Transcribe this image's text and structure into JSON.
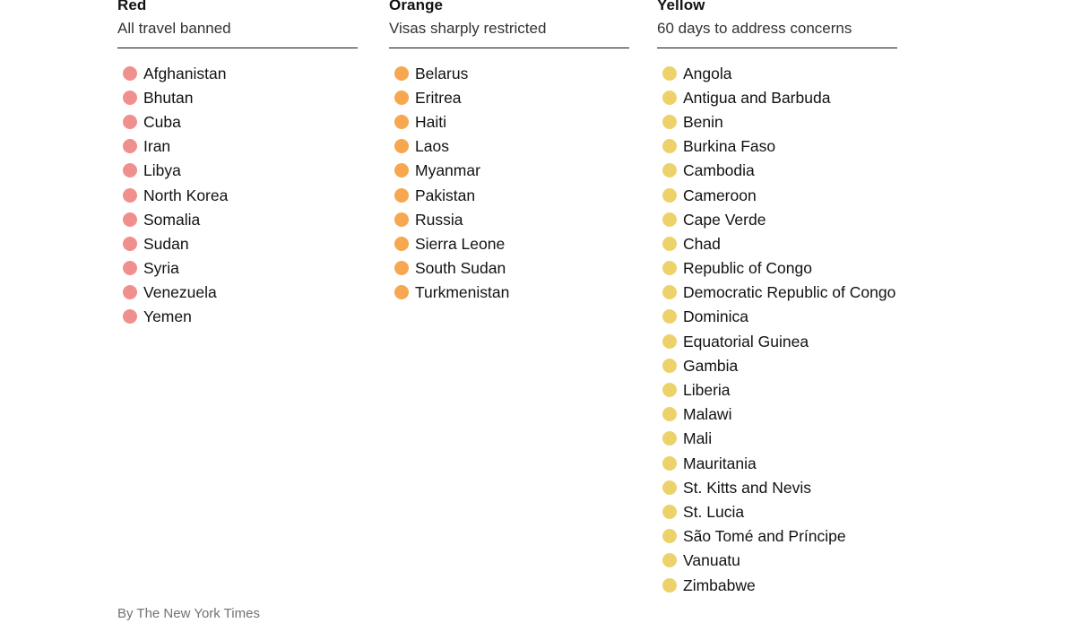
{
  "chart_data": {
    "type": "table",
    "columns": [
      {
        "label": "Red",
        "sublabel": "All travel banned",
        "dot_color": "#F0908E",
        "count": 11,
        "countries": [
          "Afghanistan",
          "Bhutan",
          "Cuba",
          "Iran",
          "Libya",
          "North Korea",
          "Somalia",
          "Sudan",
          "Syria",
          "Venezuela",
          "Yemen"
        ]
      },
      {
        "label": "Orange",
        "sublabel": "Visas sharply restricted",
        "dot_color": "#F6A750",
        "count": 10,
        "countries": [
          "Belarus",
          "Eritrea",
          "Haiti",
          "Laos",
          "Myanmar",
          "Pakistan",
          "Russia",
          "Sierra Leone",
          "South Sudan",
          "Turkmenistan"
        ]
      },
      {
        "label": "Yellow",
        "sublabel": "60 days to address concerns",
        "dot_color": "#EDD26C",
        "count": 22,
        "countries": [
          "Angola",
          "Antigua and Barbuda",
          "Benin",
          "Burkina Faso",
          "Cambodia",
          "Cameroon",
          "Cape Verde",
          "Chad",
          "Republic of Congo",
          "Democratic Republic of Congo",
          "Dominica",
          "Equatorial Guinea",
          "Gambia",
          "Liberia",
          "Malawi",
          "Mali",
          "Mauritania",
          "St. Kitts and Nevis",
          "St. Lucia",
          "São Tomé and Príncipe",
          "Vanuatu",
          "Zimbabwe"
        ]
      }
    ],
    "attribution": "By The New York Times",
    "layout": {
      "legend_position": "none",
      "grid": false
    },
    "colors": {
      "red_dot": "#F0908E",
      "orange_dot": "#F6A750",
      "yellow_dot": "#EDD26C",
      "text": "#121212",
      "rule": "#121212",
      "attribution_text": "#727272"
    }
  }
}
